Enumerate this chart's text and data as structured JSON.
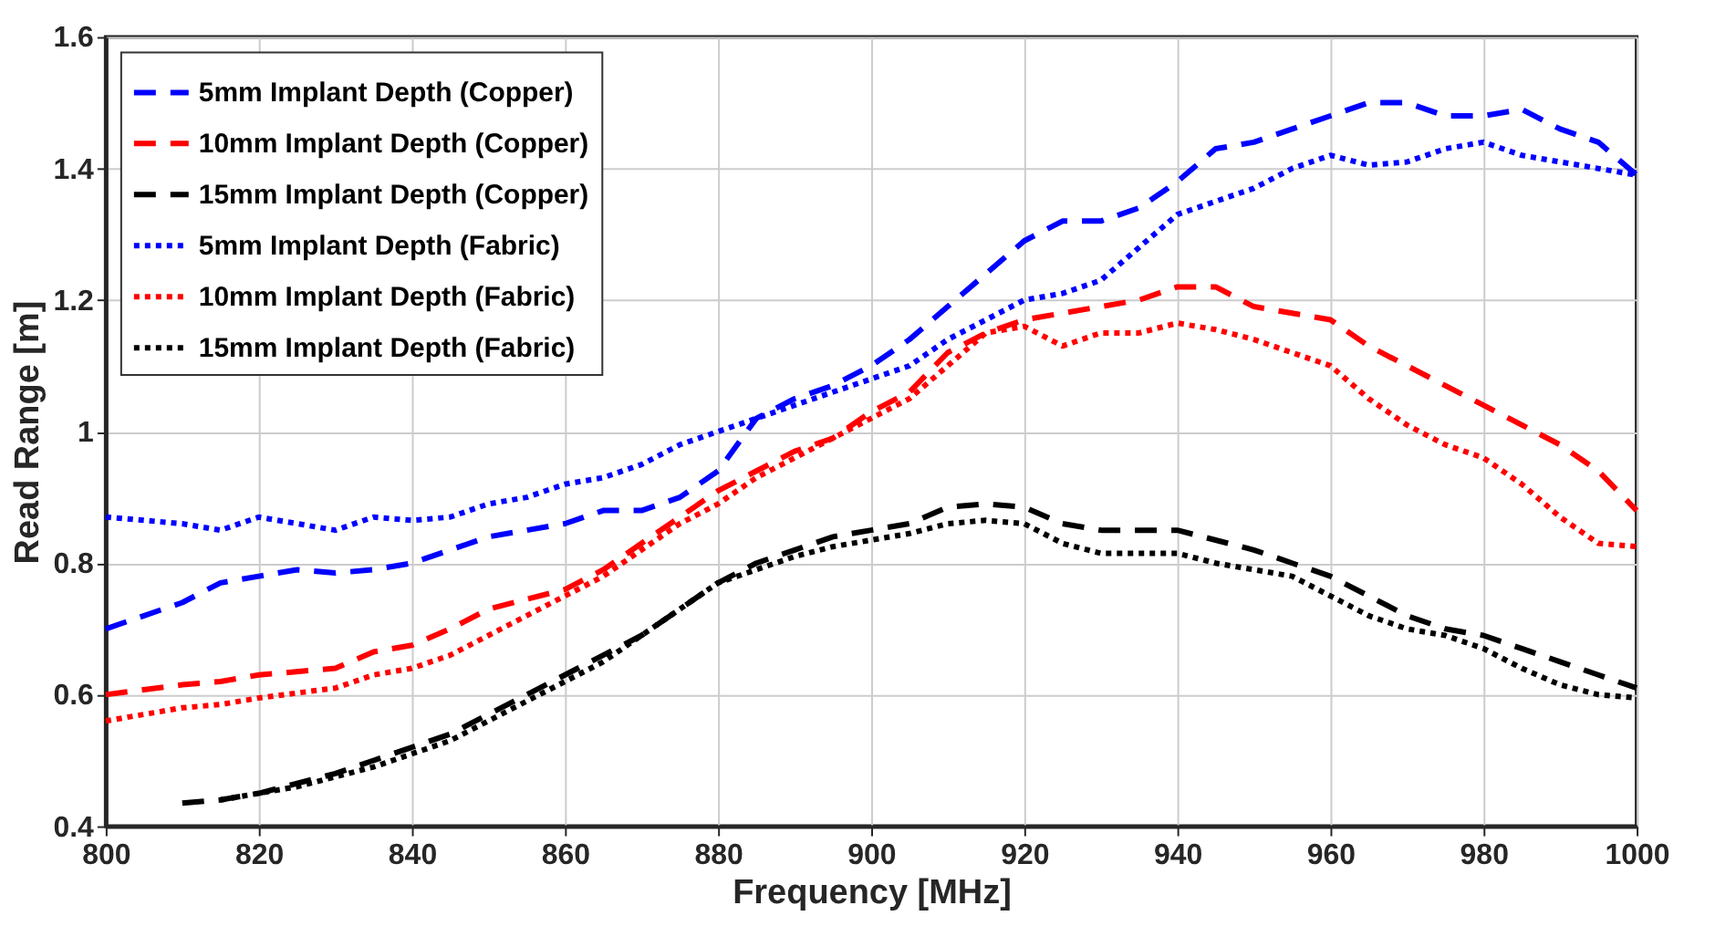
{
  "chart_data": {
    "type": "line",
    "xlabel": "Frequency [MHz]",
    "ylabel": "Read Range [m]",
    "xlim": [
      800,
      1000
    ],
    "xticks": [
      800,
      820,
      840,
      860,
      880,
      900,
      920,
      940,
      960,
      980,
      1000
    ],
    "ylim": [
      0.4,
      1.6
    ],
    "yticks": [
      0.4,
      0.6,
      0.8,
      1,
      1.2,
      1.4,
      1.6
    ],
    "grid": true,
    "legend": "top left",
    "marker": "none",
    "series": [
      {
        "name": "5mm Implant Depth (Copper)",
        "color": "#0000ff",
        "line_style": "dashed",
        "x": [
          800,
          810,
          815,
          820,
          825,
          830,
          835,
          840,
          845,
          850,
          855,
          860,
          865,
          870,
          875,
          880,
          885,
          890,
          895,
          900,
          905,
          910,
          915,
          920,
          925,
          930,
          935,
          940,
          945,
          950,
          955,
          960,
          965,
          970,
          975,
          980,
          985,
          990,
          995,
          1000
        ],
        "values": [
          0.7,
          0.74,
          0.77,
          0.78,
          0.79,
          0.785,
          0.79,
          0.8,
          0.82,
          0.84,
          0.85,
          0.86,
          0.88,
          0.88,
          0.9,
          0.94,
          1.02,
          1.05,
          1.07,
          1.1,
          1.14,
          1.19,
          1.24,
          1.29,
          1.32,
          1.32,
          1.34,
          1.38,
          1.43,
          1.44,
          1.46,
          1.48,
          1.5,
          1.5,
          1.48,
          1.48,
          1.49,
          1.46,
          1.44,
          1.39
        ]
      },
      {
        "name": "10mm Implant Depth (Copper)",
        "color": "#ff0000",
        "line_style": "dashed",
        "x": [
          800,
          810,
          815,
          820,
          830,
          835,
          840,
          845,
          850,
          860,
          865,
          870,
          875,
          880,
          885,
          890,
          895,
          900,
          905,
          910,
          915,
          920,
          930,
          935,
          940,
          945,
          950,
          960,
          965,
          970,
          980,
          990,
          995,
          1000
        ],
        "values": [
          0.6,
          0.615,
          0.62,
          0.63,
          0.64,
          0.665,
          0.675,
          0.7,
          0.73,
          0.76,
          0.79,
          0.83,
          0.87,
          0.91,
          0.94,
          0.97,
          0.99,
          1.03,
          1.06,
          1.12,
          1.15,
          1.17,
          1.19,
          1.2,
          1.22,
          1.22,
          1.19,
          1.17,
          1.13,
          1.1,
          1.04,
          0.98,
          0.94,
          0.88
        ]
      },
      {
        "name": "15mm Implant Depth (Copper)",
        "color": "#000000",
        "line_style": "dashed",
        "x": [
          810,
          815,
          820,
          825,
          830,
          835,
          840,
          845,
          850,
          855,
          860,
          865,
          870,
          875,
          880,
          885,
          890,
          895,
          900,
          905,
          910,
          915,
          920,
          925,
          930,
          935,
          940,
          945,
          950,
          955,
          960,
          965,
          970,
          975,
          980,
          985,
          990,
          995,
          1000
        ],
        "values": [
          0.435,
          0.44,
          0.45,
          0.465,
          0.48,
          0.5,
          0.52,
          0.54,
          0.57,
          0.6,
          0.63,
          0.66,
          0.69,
          0.73,
          0.77,
          0.8,
          0.82,
          0.84,
          0.85,
          0.86,
          0.885,
          0.89,
          0.885,
          0.86,
          0.85,
          0.85,
          0.85,
          0.835,
          0.82,
          0.8,
          0.78,
          0.75,
          0.72,
          0.7,
          0.69,
          0.67,
          0.65,
          0.63,
          0.61
        ]
      },
      {
        "name": "5mm Implant Depth (Fabric)",
        "color": "#0000ff",
        "line_style": "dotted",
        "x": [
          800,
          805,
          810,
          815,
          820,
          825,
          830,
          835,
          840,
          845,
          850,
          855,
          860,
          865,
          870,
          875,
          880,
          885,
          890,
          895,
          900,
          905,
          910,
          915,
          920,
          925,
          930,
          935,
          940,
          945,
          950,
          955,
          960,
          965,
          970,
          975,
          980,
          985,
          990,
          995,
          1000
        ],
        "values": [
          0.87,
          0.865,
          0.86,
          0.85,
          0.87,
          0.86,
          0.85,
          0.87,
          0.865,
          0.87,
          0.89,
          0.9,
          0.92,
          0.93,
          0.95,
          0.98,
          1.0,
          1.02,
          1.04,
          1.06,
          1.08,
          1.1,
          1.14,
          1.17,
          1.2,
          1.21,
          1.23,
          1.28,
          1.33,
          1.35,
          1.37,
          1.4,
          1.42,
          1.405,
          1.41,
          1.43,
          1.44,
          1.42,
          1.41,
          1.4,
          1.39
        ]
      },
      {
        "name": "10mm Implant Depth (Fabric)",
        "color": "#ff0000",
        "line_style": "dotted",
        "x": [
          800,
          810,
          815,
          820,
          830,
          835,
          840,
          845,
          850,
          855,
          860,
          865,
          870,
          875,
          880,
          885,
          890,
          895,
          900,
          905,
          910,
          915,
          920,
          925,
          930,
          935,
          940,
          945,
          950,
          955,
          960,
          965,
          970,
          975,
          980,
          985,
          990,
          995,
          1000
        ],
        "values": [
          0.56,
          0.58,
          0.585,
          0.595,
          0.61,
          0.63,
          0.64,
          0.66,
          0.69,
          0.72,
          0.75,
          0.78,
          0.82,
          0.86,
          0.89,
          0.93,
          0.96,
          0.99,
          1.02,
          1.05,
          1.1,
          1.15,
          1.16,
          1.13,
          1.15,
          1.15,
          1.165,
          1.155,
          1.14,
          1.12,
          1.1,
          1.05,
          1.01,
          0.98,
          0.96,
          0.92,
          0.87,
          0.83,
          0.825
        ]
      },
      {
        "name": "15mm Implant Depth (Fabric)",
        "color": "#000000",
        "line_style": "dotted",
        "x": [
          815,
          820,
          825,
          830,
          835,
          840,
          845,
          850,
          855,
          860,
          865,
          870,
          875,
          880,
          885,
          890,
          895,
          900,
          905,
          910,
          915,
          920,
          925,
          930,
          935,
          940,
          945,
          950,
          955,
          960,
          965,
          970,
          975,
          980,
          985,
          990,
          995,
          1000
        ],
        "values": [
          0.44,
          0.45,
          0.46,
          0.475,
          0.49,
          0.51,
          0.53,
          0.56,
          0.59,
          0.62,
          0.65,
          0.69,
          0.73,
          0.77,
          0.79,
          0.81,
          0.825,
          0.835,
          0.845,
          0.86,
          0.865,
          0.86,
          0.83,
          0.815,
          0.815,
          0.815,
          0.8,
          0.79,
          0.78,
          0.75,
          0.72,
          0.7,
          0.69,
          0.67,
          0.64,
          0.615,
          0.6,
          0.595
        ]
      }
    ]
  }
}
